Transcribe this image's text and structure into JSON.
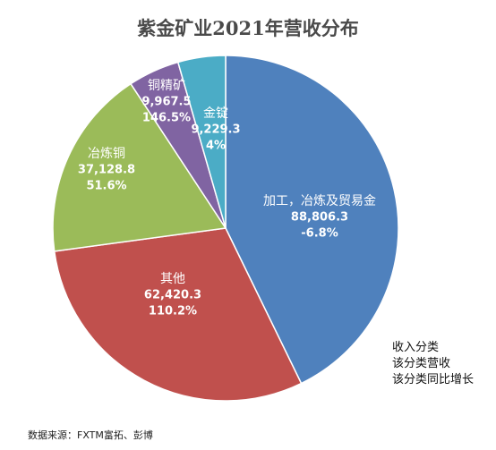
{
  "chart_data": {
    "type": "pie",
    "title": "紫金矿业2021年营收分布",
    "slices": [
      {
        "category": "加工，冶炼及贸易金",
        "value_text": "88,806.3",
        "change_text": "-6.8%",
        "value": 88806.3,
        "color": "#4f81bd",
        "text_color": "#ffffff"
      },
      {
        "category": "其他",
        "value_text": "62,420.3",
        "change_text": "110.2%",
        "value": 62420.3,
        "color": "#c0504d",
        "text_color": "#ffffff"
      },
      {
        "category": "冶炼铜",
        "value_text": "37,128.8",
        "change_text": "51.6%",
        "value": 37128.8,
        "color": "#9bbb59",
        "text_color": "#ffffff"
      },
      {
        "category": "铜精矿",
        "value_text": "9,967.5",
        "change_text": "146.5%",
        "value": 9967.5,
        "color": "#8064a2",
        "text_color": "#ffffff"
      },
      {
        "category": "金锭",
        "value_text": "9,229.3",
        "change_text": "4%",
        "value": 9229.3,
        "color": "#4bacc6",
        "text_color": "#ffffff"
      }
    ],
    "legend_note": [
      "收入分类",
      "该分类营收",
      "该分类同比增长"
    ],
    "source": "数据来源：FXTM富拓、彭博"
  }
}
